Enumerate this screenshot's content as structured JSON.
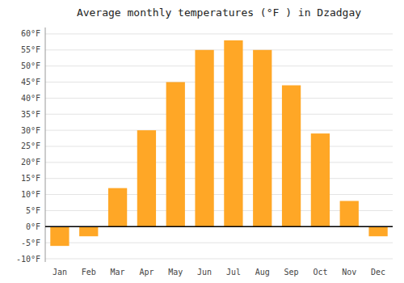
{
  "chart_data": {
    "type": "bar",
    "title": "Average monthly temperatures (°F ) in Dzadgay",
    "categories": [
      "Jan",
      "Feb",
      "Mar",
      "Apr",
      "May",
      "Jun",
      "Jul",
      "Aug",
      "Sep",
      "Oct",
      "Nov",
      "Dec"
    ],
    "values": [
      -6,
      -3,
      12,
      30,
      45,
      55,
      58,
      55,
      44,
      29,
      8,
      -3
    ],
    "color": "#FFA726",
    "ylim": [
      -11,
      62
    ],
    "yticks": [
      {
        "value": -10,
        "label": "-10°F"
      },
      {
        "value": -5,
        "label": "-5°F"
      },
      {
        "value": 0,
        "label": "0°F"
      },
      {
        "value": 5,
        "label": "5°F"
      },
      {
        "value": 10,
        "label": "10°F"
      },
      {
        "value": 15,
        "label": "15°F"
      },
      {
        "value": 20,
        "label": "20°F"
      },
      {
        "value": 25,
        "label": "25°F"
      },
      {
        "value": 30,
        "label": "30°F"
      },
      {
        "value": 35,
        "label": "35°F"
      },
      {
        "value": 40,
        "label": "40°F"
      },
      {
        "value": 45,
        "label": "45°F"
      },
      {
        "value": 50,
        "label": "50°F"
      },
      {
        "value": 55,
        "label": "55°F"
      },
      {
        "value": 60,
        "label": "60°F"
      }
    ],
    "grid": true
  }
}
